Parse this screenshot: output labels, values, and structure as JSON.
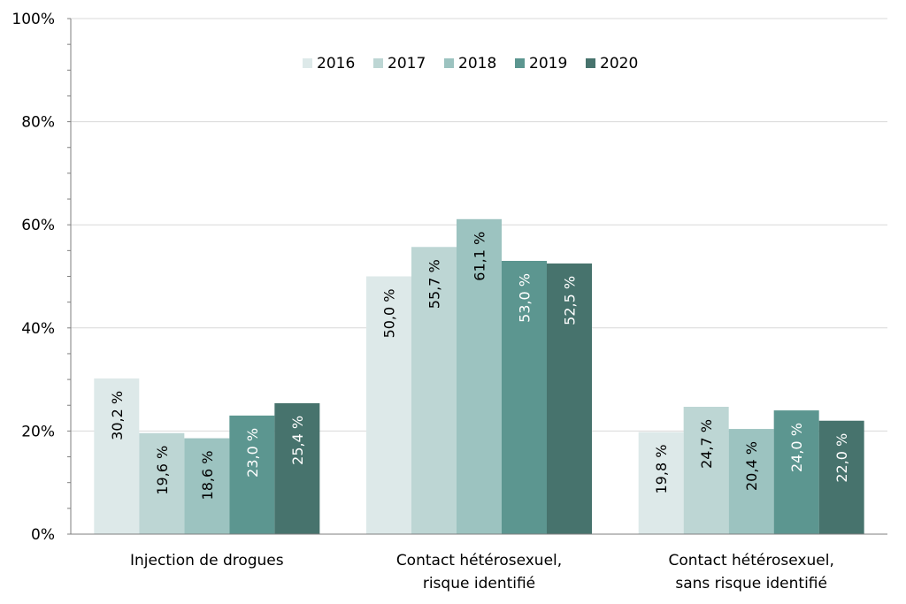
{
  "chart_data": {
    "type": "bar",
    "categories": [
      [
        "Injection de drogues"
      ],
      [
        "Contact hétérosexuel,",
        "risque identifié"
      ],
      [
        "Contact hétérosexuel,",
        "sans risque identifié"
      ]
    ],
    "series": [
      {
        "name": "2016",
        "color": "#dde9e9",
        "values": [
          30.2,
          50.0,
          19.8
        ],
        "labels": [
          "30,2  %",
          "50,0 %",
          "19,8 %"
        ],
        "label_color": "#000000"
      },
      {
        "name": "2017",
        "color": "#bdd6d4",
        "values": [
          19.6,
          55.7,
          24.7
        ],
        "labels": [
          "19,6 %",
          "55,7 %",
          "24,7 %"
        ],
        "label_color": "#000000"
      },
      {
        "name": "2018",
        "color": "#9cc3c0",
        "values": [
          18.6,
          61.1,
          20.4
        ],
        "labels": [
          "18,6 %",
          "61,1 %",
          "20,4 %"
        ],
        "label_color": "#000000"
      },
      {
        "name": "2019",
        "color": "#5c9690",
        "values": [
          23.0,
          53.0,
          24.0
        ],
        "labels": [
          "23,0 %",
          "53,0 %",
          "24,0 %"
        ],
        "label_color": "#ffffff"
      },
      {
        "name": "2020",
        "color": "#47736d",
        "values": [
          25.4,
          52.5,
          22.0
        ],
        "labels": [
          "25,4 %",
          "52,5 %",
          "22,0 %"
        ],
        "label_color": "#ffffff"
      }
    ],
    "yticks": [
      "0%",
      "20%",
      "40%",
      "60%",
      "80%",
      "100%"
    ],
    "ylim": [
      0,
      100
    ],
    "grid": true,
    "legend": "top-center",
    "title": "",
    "xlabel": "",
    "ylabel": ""
  }
}
